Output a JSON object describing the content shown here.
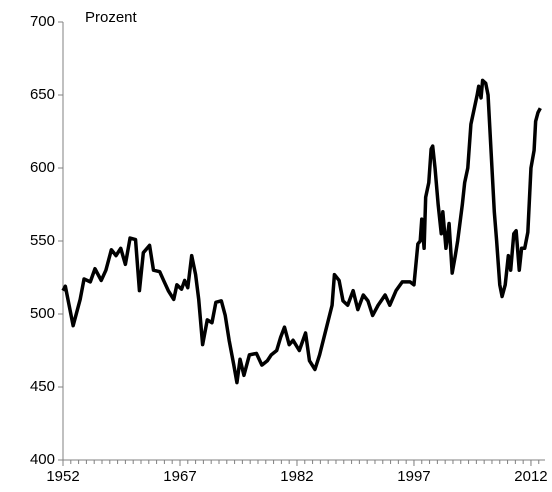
{
  "chart_data": {
    "type": "line",
    "y_label": "Prozent",
    "x": [
      1952,
      1952.3,
      1953.3,
      1954.2,
      1954.7,
      1955.5,
      1956.1,
      1956.9,
      1957.5,
      1958.2,
      1958.8,
      1959.4,
      1960,
      1960.6,
      1961.3,
      1961.8,
      1962.3,
      1963.1,
      1963.6,
      1964.4,
      1964.9,
      1965.5,
      1966.2,
      1966.6,
      1967.2,
      1967.6,
      1968,
      1968.5,
      1969,
      1969.4,
      1969.9,
      1970.5,
      1971.1,
      1971.6,
      1972.3,
      1972.8,
      1973.3,
      1973.9,
      1974.3,
      1974.7,
      1975.2,
      1975.9,
      1976.8,
      1977.5,
      1978.2,
      1978.7,
      1979.4,
      1979.9,
      1980.4,
      1981,
      1981.5,
      1982.3,
      1983.1,
      1983.6,
      1984.3,
      1984.9,
      1985.7,
      1986.5,
      1986.8,
      1987.4,
      1987.9,
      1988.5,
      1989.2,
      1989.8,
      1990.5,
      1991.1,
      1991.7,
      1992.4,
      1993.3,
      1993.9,
      1994.7,
      1995.5,
      1996.1,
      1996.5,
      1997,
      1997.5,
      1997.8,
      1998,
      1998.3,
      1998.5,
      1998.9,
      1999.2,
      1999.4,
      1999.7,
      2000.1,
      2000.5,
      2000.7,
      2001.1,
      2001.5,
      2001.9,
      2002.3,
      2002.6,
      2003.2,
      2003.5,
      2003.9,
      2004.3,
      2004.7,
      2005.1,
      2005.3,
      2005.6,
      2005.8,
      2006.2,
      2006.5,
      2006.9,
      2007.3,
      2007.6,
      2008,
      2008.3,
      2008.7,
      2009.1,
      2009.4,
      2009.8,
      2010.1,
      2010.5,
      2010.8,
      2011.2,
      2011.6,
      2012,
      2012.4,
      2012.6,
      2012.9,
      2013.2
    ],
    "series": [
      {
        "name": "Prozent",
        "color": "#000000",
        "values": [
          516,
          519,
          492,
          510,
          524,
          522,
          531,
          523,
          530,
          544,
          540,
          545,
          534,
          552,
          551,
          516,
          542,
          547,
          530,
          529,
          523,
          516,
          510,
          520,
          517,
          523,
          518,
          540,
          527,
          510,
          479,
          496,
          494,
          508,
          509,
          499,
          482,
          465,
          453,
          469,
          458,
          472,
          473,
          465,
          468,
          472,
          475,
          484,
          491,
          479,
          482,
          475,
          487,
          468,
          462,
          472,
          489,
          506,
          527,
          523,
          509,
          506,
          516,
          503,
          513,
          509,
          499,
          506,
          513,
          506,
          516,
          522,
          522,
          522,
          520,
          548,
          550,
          565,
          545,
          580,
          590,
          613,
          615,
          600,
          575,
          555,
          570,
          545,
          562,
          528,
          540,
          550,
          575,
          590,
          600,
          630,
          640,
          650,
          656,
          648,
          660,
          658,
          650,
          610,
          570,
          550,
          520,
          512,
          520,
          540,
          530,
          555,
          557,
          530,
          545,
          545,
          556,
          600,
          612,
          632,
          638,
          641
        ]
      }
    ],
    "xlim": [
      1952,
      2013.8
    ],
    "xticks": [
      1952,
      1967,
      1982,
      1997,
      2012
    ],
    "ylim": [
      400,
      700
    ],
    "yticks": [
      400,
      450,
      500,
      550,
      600,
      650,
      700
    ],
    "grid": false
  }
}
